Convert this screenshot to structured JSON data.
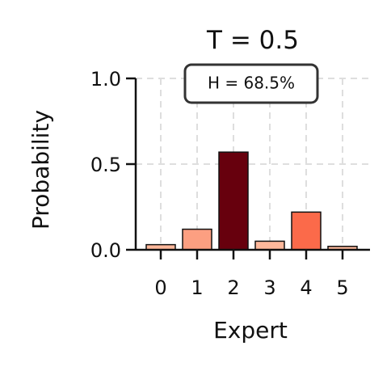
{
  "chart_data": {
    "type": "bar",
    "title": "T = 0.5",
    "xlabel": "Expert",
    "ylabel": "Probability",
    "categories": [
      "0",
      "1",
      "2",
      "3",
      "4",
      "5"
    ],
    "values": [
      0.03,
      0.12,
      0.57,
      0.05,
      0.22,
      0.02
    ],
    "bar_colors": [
      "#fdb89b",
      "#fc9f81",
      "#67000d",
      "#fdb89b",
      "#fb6a4a",
      "#fdb89b"
    ],
    "ylim": [
      0,
      1.0
    ],
    "yticks": [
      0.0,
      0.5,
      1.0
    ],
    "ytick_labels": [
      "0.0",
      "0.5",
      "1.0"
    ],
    "grid": true,
    "annotation": {
      "text": "H = 68.5%",
      "placement": "top-center"
    }
  }
}
